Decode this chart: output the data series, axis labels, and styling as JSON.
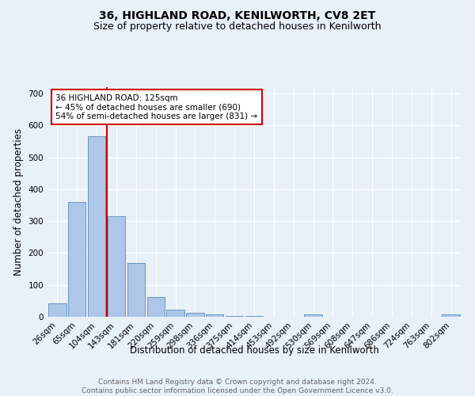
{
  "title": "36, HIGHLAND ROAD, KENILWORTH, CV8 2ET",
  "subtitle": "Size of property relative to detached houses in Kenilworth",
  "xlabel": "Distribution of detached houses by size in Kenilworth",
  "ylabel": "Number of detached properties",
  "bar_labels": [
    "26sqm",
    "65sqm",
    "104sqm",
    "143sqm",
    "181sqm",
    "220sqm",
    "259sqm",
    "298sqm",
    "336sqm",
    "375sqm",
    "414sqm",
    "453sqm",
    "492sqm",
    "530sqm",
    "569sqm",
    "608sqm",
    "647sqm",
    "686sqm",
    "724sqm",
    "763sqm",
    "802sqm"
  ],
  "bar_values": [
    42,
    360,
    565,
    315,
    168,
    62,
    22,
    12,
    7,
    2,
    2,
    0,
    0,
    7,
    0,
    0,
    0,
    0,
    0,
    0,
    7
  ],
  "bar_color": "#aec6e8",
  "bar_edge_color": "#5b8db8",
  "background_color": "#e8f0f8",
  "grid_color": "#ffffff",
  "vline_x": 2.5,
  "vline_color": "#cc0000",
  "annotation_text": "36 HIGHLAND ROAD: 125sqm\n← 45% of detached houses are smaller (690)\n54% of semi-detached houses are larger (831) →",
  "annotation_box_color": "#ffffff",
  "annotation_box_edge": "#cc0000",
  "ylim": [
    0,
    720
  ],
  "yticks": [
    0,
    100,
    200,
    300,
    400,
    500,
    600,
    700
  ],
  "footer_text": "Contains HM Land Registry data © Crown copyright and database right 2024.\nContains public sector information licensed under the Open Government Licence v3.0.",
  "title_fontsize": 10,
  "subtitle_fontsize": 9,
  "axis_label_fontsize": 8.5,
  "tick_fontsize": 7.5,
  "annotation_fontsize": 7.5,
  "footer_fontsize": 6.5
}
